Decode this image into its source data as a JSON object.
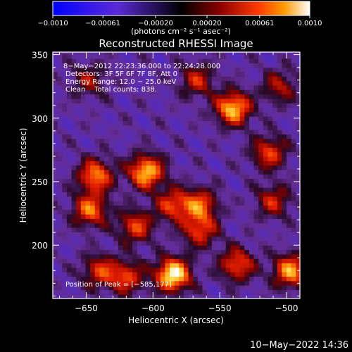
{
  "colorbar": {
    "tick_labels": [
      "−0.0010",
      "−0.00061",
      "−0.00020",
      "0.00020",
      "0.00061",
      "0.0010"
    ],
    "tick_values": [
      -0.001,
      -0.00061,
      -0.0002,
      0.0002,
      0.00061,
      0.001
    ],
    "range": [
      -0.001,
      0.001
    ],
    "units_label": "(photons cm⁻² s⁻¹ asec⁻²)",
    "colors": [
      "#0000ff",
      "#5a2ad8",
      "#000000",
      "#8a0000",
      "#ff2a00",
      "#ff9a00",
      "#ffffff"
    ]
  },
  "chart_data": {
    "type": "heatmap",
    "title": "Reconstructed RHESSI Image",
    "xlabel": "Heliocentric X (arcsec)",
    "ylabel": "Heliocentric Y (arcsec)",
    "xlim": [
      -675,
      -490
    ],
    "ylim": [
      158,
      352
    ],
    "x_ticks": [
      -650,
      -600,
      -550,
      -500
    ],
    "x_tick_labels": [
      "−650",
      "−600",
      "−550",
      "−500"
    ],
    "y_ticks": [
      200,
      250,
      300,
      350
    ],
    "y_tick_labels": [
      "200",
      "250",
      "300",
      "350"
    ],
    "annotations": [
      "8−May−2012 22:23:36.000 to 22:24:28.000",
      "Detectors: 3F 5F 6F 7F 8F, Att 0",
      "Energy Range: 12.0 − 25.0 keV",
      "Clean    Total counts: 838."
    ],
    "peak_label": "Position of Peak = [−585,177]",
    "peak": [
      -585,
      177
    ],
    "sources": [
      {
        "x": -585,
        "y": 177,
        "v": 1.0
      },
      {
        "x": -605,
        "y": 258,
        "v": 0.85
      },
      {
        "x": -585,
        "y": 232,
        "v": 0.55
      },
      {
        "x": -565,
        "y": 232,
        "v": 0.6
      },
      {
        "x": -565,
        "y": 212,
        "v": 0.55
      },
      {
        "x": -613,
        "y": 215,
        "v": 0.55
      },
      {
        "x": -643,
        "y": 255,
        "v": 0.7
      },
      {
        "x": -647,
        "y": 228,
        "v": 0.65
      },
      {
        "x": -540,
        "y": 308,
        "v": 0.85
      },
      {
        "x": -567,
        "y": 330,
        "v": 0.45
      },
      {
        "x": -513,
        "y": 273,
        "v": 0.55
      },
      {
        "x": -510,
        "y": 235,
        "v": 0.45
      },
      {
        "x": -497,
        "y": 180,
        "v": 0.75
      },
      {
        "x": -537,
        "y": 185,
        "v": 0.6
      },
      {
        "x": -640,
        "y": 180,
        "v": 0.5
      },
      {
        "x": -505,
        "y": 325,
        "v": 0.4
      },
      {
        "x": -620,
        "y": 175,
        "v": 0.55
      },
      {
        "x": -648,
        "y": 330,
        "v": 0.35
      }
    ],
    "background_level": -0.25,
    "grid": false
  },
  "footer": {
    "timestamp": "10−May−2022 14:36"
  }
}
